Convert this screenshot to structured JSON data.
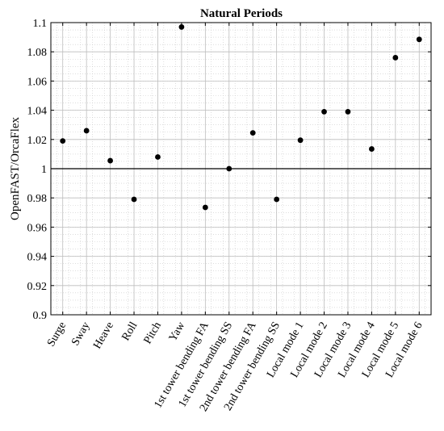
{
  "chart_data": {
    "type": "scatter",
    "title": "Natural Periods",
    "xlabel": "",
    "ylabel": "OpenFAST/OrcaFlex",
    "ylim": [
      0.9,
      1.1
    ],
    "yticks": [
      "0.9",
      "0.92",
      "0.94",
      "0.96",
      "0.98",
      "1",
      "1.02",
      "1.04",
      "1.06",
      "1.08",
      "1.1"
    ],
    "yminor_step": 0.005,
    "grid": true,
    "minor_grid": true,
    "reference_line_y": 1,
    "categories": [
      "Surge",
      "Sway",
      "Heave",
      "Roll",
      "Pitch",
      "Yaw",
      "1st tower bending FA",
      "1st tower bending SS",
      "2nd tower bending FA",
      "2nd tower bending SS",
      "Local mode 1",
      "Local mode 2",
      "Local mode 3",
      "Local mode 4",
      "Local mode 5",
      "Local mode 6"
    ],
    "values": [
      1.019,
      1.026,
      1.0055,
      0.979,
      1.008,
      1.097,
      0.9735,
      1.0,
      1.0245,
      0.979,
      1.0195,
      1.039,
      1.039,
      1.0135,
      1.076,
      1.0885
    ],
    "marker_color": "#000000"
  }
}
